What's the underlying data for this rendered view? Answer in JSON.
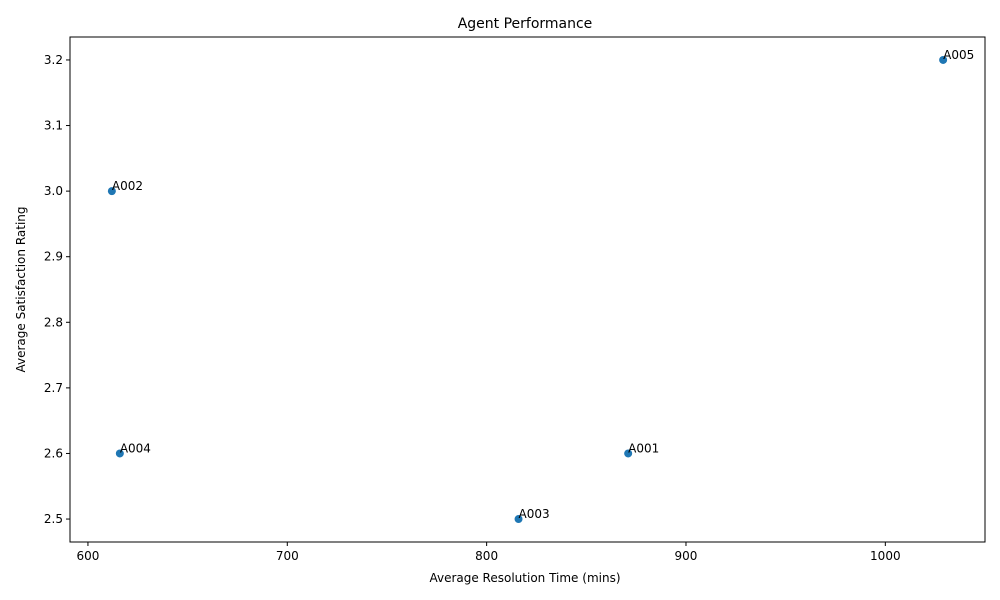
{
  "chart_data": {
    "type": "scatter",
    "title": "Agent Performance",
    "xlabel": "Average Resolution Time (mins)",
    "ylabel": "Average Satisfaction Rating",
    "xlim": [
      591,
      1050
    ],
    "ylim": [
      2.465,
      3.235
    ],
    "xticks": [
      600,
      700,
      800,
      900,
      1000
    ],
    "yticks": [
      2.5,
      2.6,
      2.7,
      2.8,
      2.9,
      3.0,
      3.1,
      3.2
    ],
    "xtick_labels": [
      "600",
      "700",
      "800",
      "900",
      "1000"
    ],
    "ytick_labels": [
      "2.5",
      "2.6",
      "2.7",
      "2.8",
      "2.9",
      "3.0",
      "3.1",
      "3.2"
    ],
    "grid": false,
    "legend": "none",
    "point_color": "#1f77b4",
    "points": [
      {
        "label": "A001",
        "x": 871,
        "y": 2.6
      },
      {
        "label": "A002",
        "x": 612,
        "y": 3.0
      },
      {
        "label": "A003",
        "x": 816,
        "y": 2.5
      },
      {
        "label": "A004",
        "x": 616,
        "y": 2.6
      },
      {
        "label": "A005",
        "x": 1029,
        "y": 3.2
      }
    ]
  }
}
